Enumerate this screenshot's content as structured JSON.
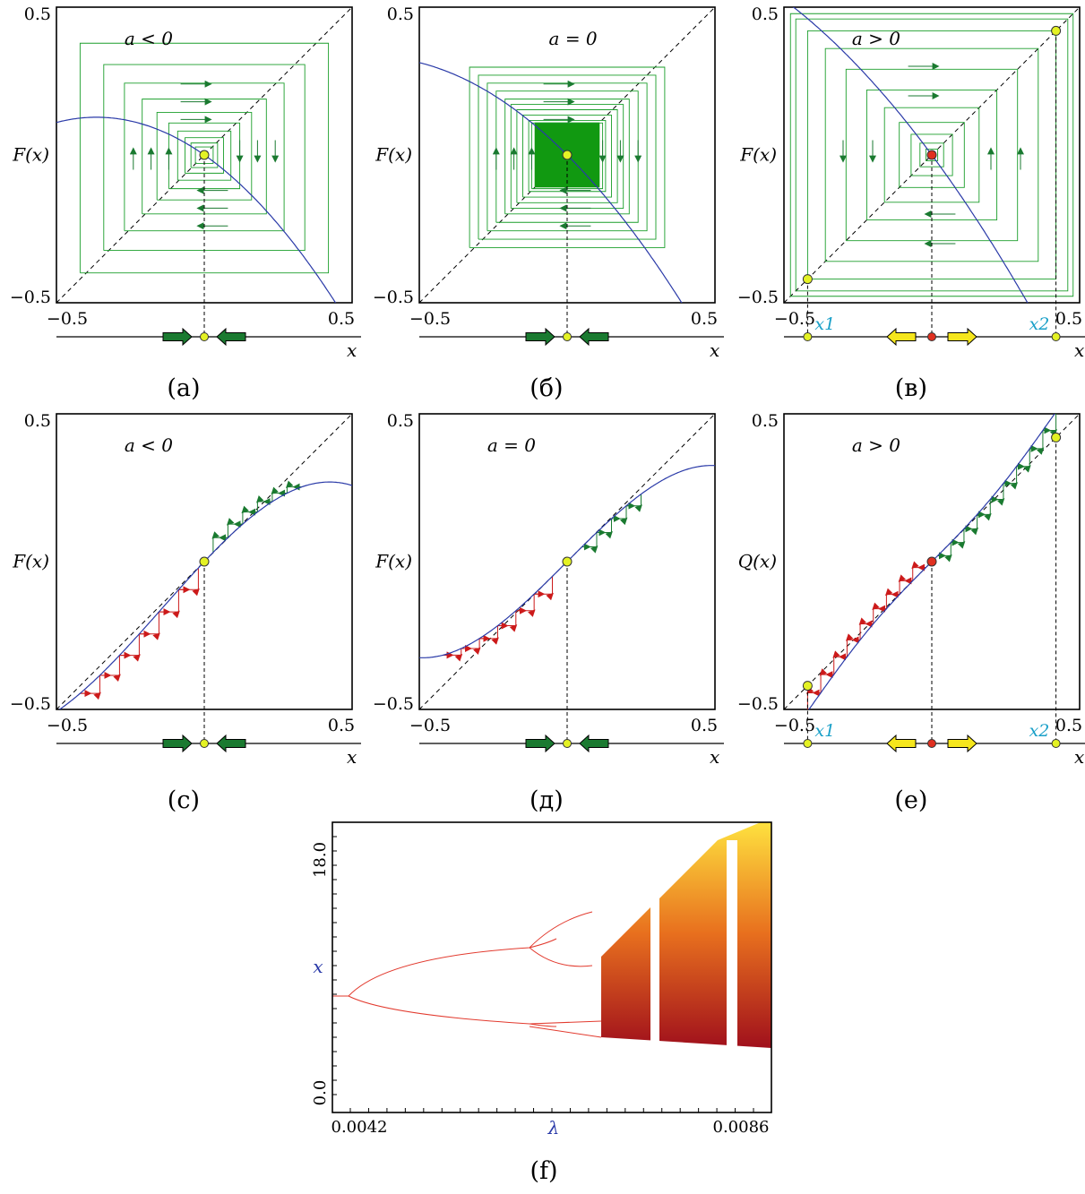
{
  "panels": [
    {
      "id": "a",
      "caption": "(а)",
      "ylabel": "F(x)",
      "condition": "a < 0",
      "xmin": "−0.5",
      "xmax": "0.5",
      "ymin": "−0.5",
      "ymax": "0.5",
      "axis_label": "x",
      "map_type": "quadratic",
      "fixed_point": 0.0,
      "fixed_point_color": "#e4f224",
      "stability": "stable",
      "x1_label": "",
      "x2_label": ""
    },
    {
      "id": "b",
      "caption": "(б)",
      "ylabel": "F(x)",
      "condition": "a = 0",
      "xmin": "−0.5",
      "xmax": "0.5",
      "ymin": "−0.5",
      "ymax": "0.5",
      "axis_label": "x",
      "map_type": "quadratic",
      "fixed_point": 0.0,
      "fixed_point_color": "#e4f224",
      "stability": "neutral",
      "x1_label": "",
      "x2_label": ""
    },
    {
      "id": "c",
      "caption": "(в)",
      "ylabel": "F(x)",
      "condition": "a > 0",
      "xmin": "−0.5",
      "xmax": "0.5",
      "ymin": "−0.5",
      "ymax": "0.5",
      "axis_label": "x",
      "map_type": "quadratic",
      "fixed_point": 0.0,
      "fixed_point_color": "#e03020",
      "stability": "unstable",
      "x1_label": "x1",
      "x2_label": "x2"
    },
    {
      "id": "d",
      "caption": "(c)",
      "ylabel": "F(x)",
      "condition": "a < 0",
      "xmin": "−0.5",
      "xmax": "0.5",
      "ymin": "−0.5",
      "ymax": "0.5",
      "axis_label": "x",
      "map_type": "tangent",
      "fixed_point": 0.0,
      "fixed_point_color": "#e4f224",
      "stability": "stable",
      "x1_label": "",
      "x2_label": ""
    },
    {
      "id": "e",
      "caption": "(д)",
      "ylabel": "F(x)",
      "condition": "a = 0",
      "xmin": "−0.5",
      "xmax": "0.5",
      "ymin": "−0.5",
      "ymax": "0.5",
      "axis_label": "x",
      "map_type": "tangent",
      "fixed_point": 0.0,
      "fixed_point_color": "#e4f224",
      "stability": "neutral",
      "x1_label": "",
      "x2_label": ""
    },
    {
      "id": "f",
      "caption": "(e)",
      "ylabel": "Q(x)",
      "condition": "a > 0",
      "xmin": "−0.5",
      "xmax": "0.5",
      "ymin": "−0.5",
      "ymax": "0.5",
      "axis_label": "x",
      "map_type": "tangent",
      "fixed_point": 0.0,
      "fixed_point_color": "#e03020",
      "stability": "unstable",
      "x1_label": "x1",
      "x2_label": "x2"
    }
  ],
  "bifurcation": {
    "caption": "(f)",
    "xlabel": "λ",
    "ylabel": "x",
    "xmin": "0.0042",
    "xmax": "0.0086",
    "ymin": "0.0",
    "ymax": "18.0",
    "colors": {
      "branch": "#e23a2e",
      "chaos_low": "#b8141e",
      "chaos_high": "#ffe23a",
      "window": "#ffffff"
    }
  },
  "colors": {
    "curve": "#2a3aa8",
    "cobweb": "#1a9e2a",
    "cobweb_fill": "#119911",
    "cobweb_red": "#cc1a1a",
    "stable_arrow": "#1a7a30",
    "unstable_arrow": "#f5e61c",
    "axis_label_blue": "#2a3aa8"
  }
}
